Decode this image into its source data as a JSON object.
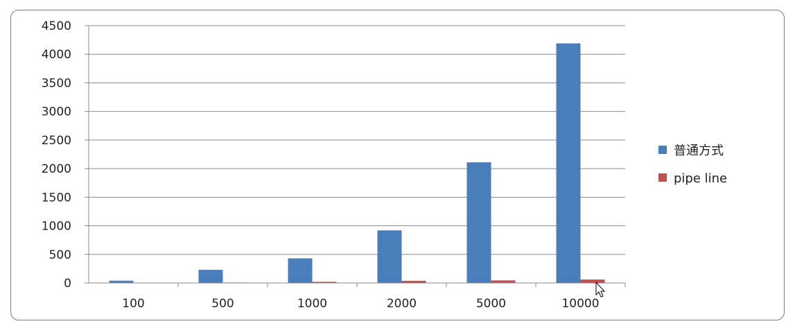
{
  "chart_data": {
    "type": "bar",
    "categories": [
      "100",
      "500",
      "1000",
      "2000",
      "5000",
      "10000"
    ],
    "series": [
      {
        "name": "普通方式",
        "color": "#4a7ebb",
        "values": [
          40,
          230,
          430,
          920,
          2110,
          4190
        ]
      },
      {
        "name": "pipe line",
        "color": "#c0504d",
        "values": [
          3,
          8,
          20,
          38,
          45,
          60
        ]
      }
    ],
    "y_ticks": [
      "0",
      "500",
      "1000",
      "1500",
      "2000",
      "2500",
      "3000",
      "3500",
      "4000",
      "4500"
    ],
    "ylim": [
      0,
      4500
    ],
    "grid": true,
    "legend_position": "right"
  }
}
